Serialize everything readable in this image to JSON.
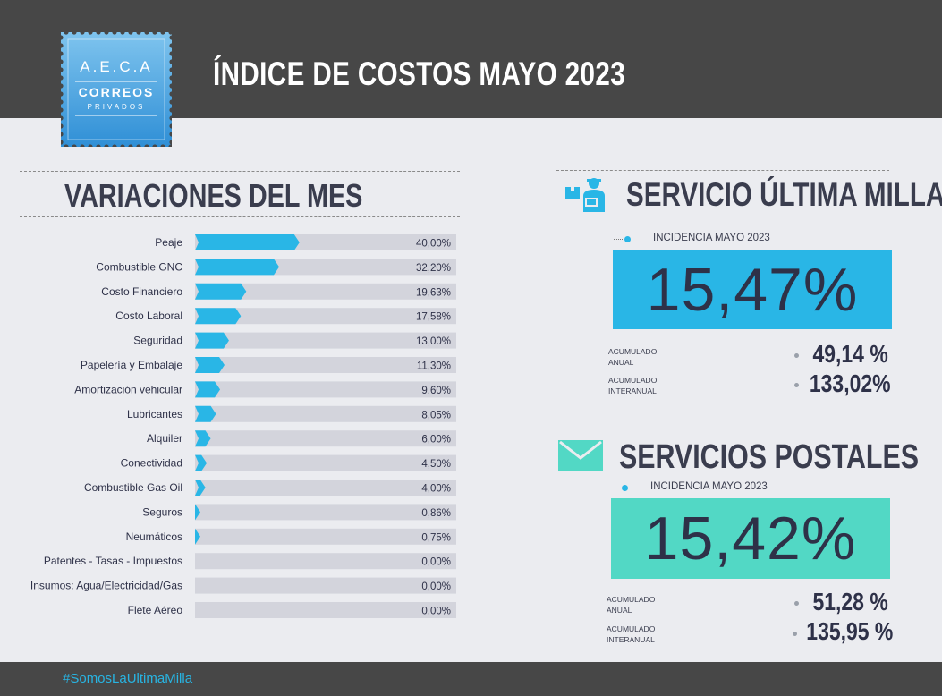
{
  "header": {
    "title": "ÍNDICE DE COSTOS MAYO 2023",
    "logo_line1": "A.E.C.A",
    "logo_line2": "CORREOS",
    "logo_line3": "PRIVADOS"
  },
  "left": {
    "title": "VARIACIONES DEL MES"
  },
  "ultima_milla": {
    "title": "SERVICIO ÚLTIMA MILLA",
    "icon": "delivery-person-icon",
    "incidencia_label": "INCIDENCIA MAYO 2023",
    "incidencia_value": "15,47%",
    "acumulado_anual_label_1": "ACUMULADO",
    "acumulado_anual_label_2": "ANUAL",
    "acumulado_anual_value": "49,14 %",
    "acumulado_interanual_label_1": "ACUMULADO",
    "acumulado_interanual_label_2": "INTERANUAL",
    "acumulado_interanual_value": "133,02%"
  },
  "postales": {
    "title": "SERVICIOS POSTALES",
    "icon": "envelope-icon",
    "incidencia_label": "INCIDENCIA MAYO 2023",
    "incidencia_value": "15,42%",
    "acumulado_anual_label_1": "ACUMULADO",
    "acumulado_anual_label_2": "ANUAL",
    "acumulado_anual_value": "51,28 %",
    "acumulado_interanual_label_1": "ACUMULADO",
    "acumulado_interanual_label_2": "INTERANUAL",
    "acumulado_interanual_value": "135,95 %"
  },
  "footer": {
    "hashtag": "#SomosLaUltimaMilla"
  },
  "colors": {
    "header_bg": "#474747",
    "page_bg": "#ebecf0",
    "bar": "#29b6e6",
    "track": "#d3d4dc",
    "ultima_box": "#29b6e6",
    "postales_box": "#52d8c5",
    "hashtag": "#28b4e2"
  },
  "chart_data": {
    "type": "bar",
    "orientation": "horizontal",
    "categories": [
      "Peaje",
      "Combustible GNC",
      "Costo Financiero",
      "Costo Laboral",
      "Seguridad",
      "Papelería y Embalaje",
      "Amortización vehicular",
      "Lubricantes",
      "Alquiler",
      "Conectividad",
      "Combustible Gas Oil",
      "Seguros",
      "Neumáticos",
      "Patentes - Tasas - Impuestos",
      "Insumos: Agua/Electricidad/Gas",
      "Flete Aéreo"
    ],
    "values": [
      40.0,
      32.2,
      19.63,
      17.58,
      13.0,
      11.3,
      9.6,
      8.05,
      6.0,
      4.5,
      4.0,
      0.86,
      0.75,
      0.0,
      0.0,
      0.0
    ],
    "value_labels": [
      "40,00%",
      "32,20%",
      "19,63%",
      "17,58%",
      "13,00%",
      "11,30%",
      "9,60%",
      "8,05%",
      "6,00%",
      "4,50%",
      "4,00%",
      "0,86%",
      "0,75%",
      "0,00%",
      "0,00%",
      "0,00%"
    ],
    "title": "VARIACIONES DEL MES",
    "xlim": [
      0,
      100
    ],
    "grid": false,
    "legend": "none"
  }
}
